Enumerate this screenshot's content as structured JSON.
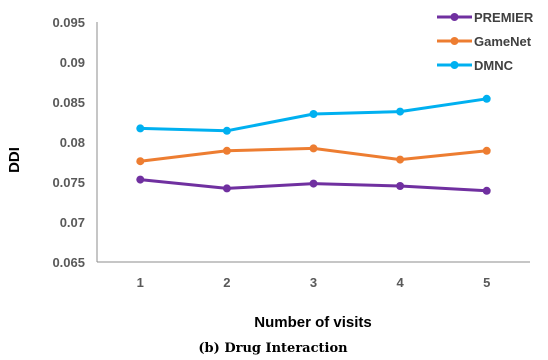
{
  "chart_data": {
    "type": "line",
    "categories": [
      "1",
      "2",
      "3",
      "4",
      "5"
    ],
    "xlabel": "Number of visits",
    "ylabel": "DDI",
    "ylim": [
      0.065,
      0.095
    ],
    "yticks": [
      "0.065",
      "0.07",
      "0.075",
      "0.08",
      "0.085",
      "0.09",
      "0.095"
    ],
    "grid": false,
    "legend": "top-right",
    "series": [
      {
        "name": "PREMIER",
        "color": "#7030A0",
        "values": [
          0.0753,
          0.0742,
          0.0748,
          0.0745,
          0.0739
        ]
      },
      {
        "name": "GameNet",
        "color": "#ED7D31",
        "values": [
          0.0776,
          0.0789,
          0.0792,
          0.0778,
          0.0789
        ]
      },
      {
        "name": "DMNC",
        "color": "#00B0F0",
        "values": [
          0.0817,
          0.0814,
          0.0835,
          0.0838,
          0.0854
        ]
      }
    ]
  },
  "caption": "(b) Drug Interaction"
}
